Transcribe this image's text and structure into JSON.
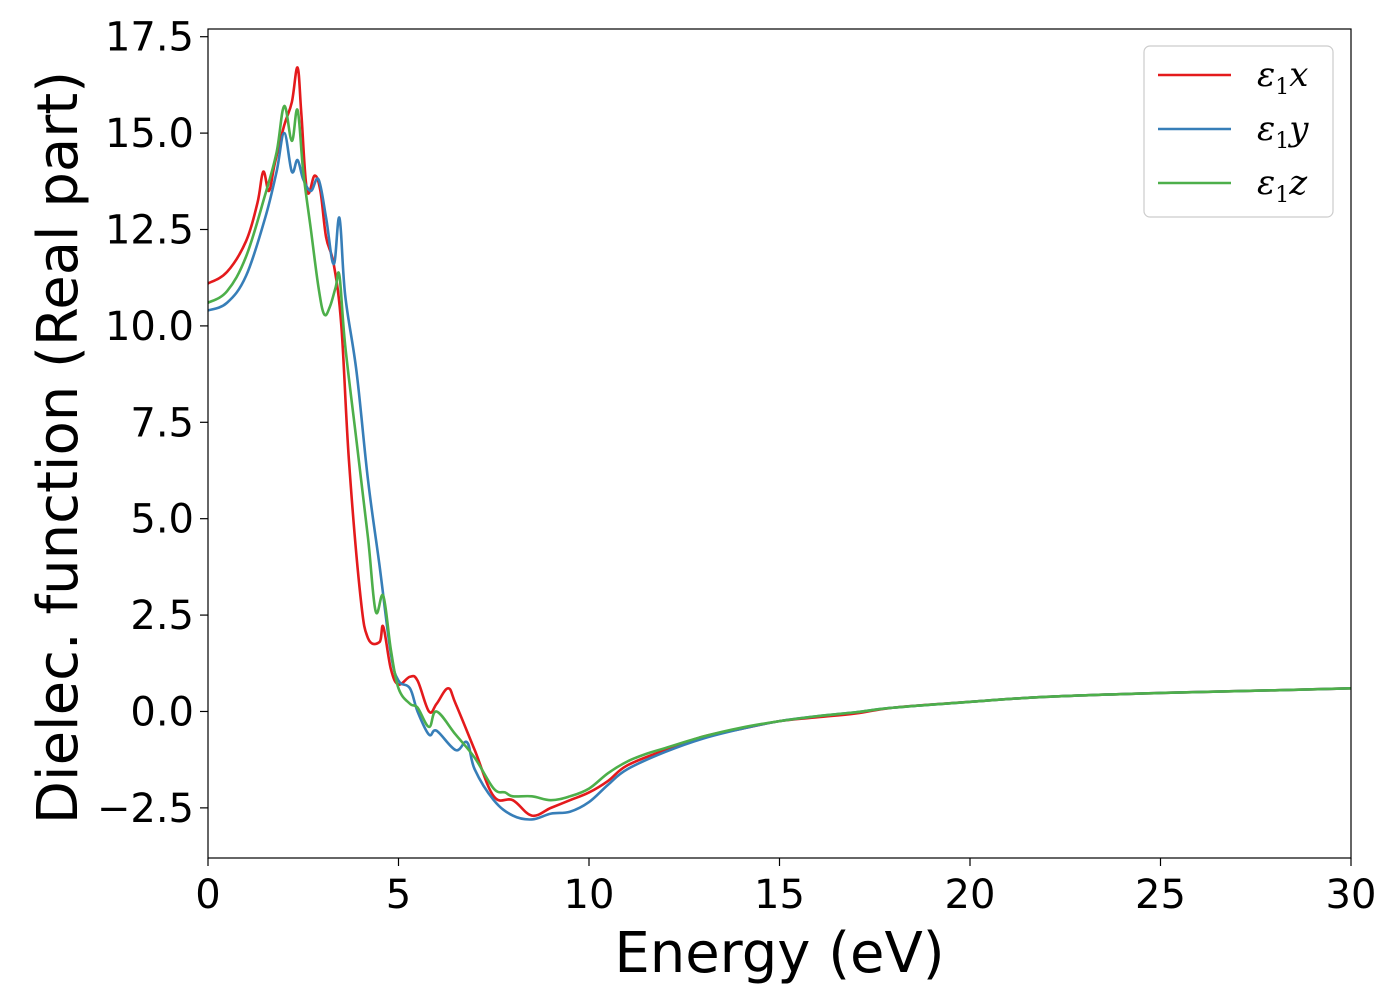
{
  "chart_data": {
    "type": "line",
    "title": "",
    "xlabel": "Energy (eV)",
    "ylabel": "Dielec. function (Real part)",
    "xlim": [
      0,
      30
    ],
    "ylim": [
      -3.8,
      17.7
    ],
    "xticks": [
      0,
      5,
      10,
      15,
      20,
      25,
      30
    ],
    "xtick_labels": [
      "0",
      "5",
      "10",
      "15",
      "20",
      "25",
      "30"
    ],
    "yticks": [
      -2.5,
      0.0,
      2.5,
      5.0,
      7.5,
      10.0,
      12.5,
      15.0,
      17.5
    ],
    "ytick_labels": [
      "−2.5",
      "0.0",
      "2.5",
      "5.0",
      "7.5",
      "10.0",
      "12.5",
      "15.0",
      "17.5"
    ],
    "grid": false,
    "legend_position": "top-right",
    "series": [
      {
        "name": "ε₁x",
        "legend_base": "ε",
        "legend_sub": "1",
        "legend_suffix": "x",
        "color": "#e41a1c",
        "x": [
          0,
          0.5,
          1.0,
          1.3,
          1.45,
          1.6,
          1.75,
          2.0,
          2.2,
          2.35,
          2.45,
          2.6,
          2.8,
          2.95,
          3.1,
          3.3,
          3.5,
          3.7,
          4.0,
          4.2,
          4.5,
          4.6,
          4.8,
          5.0,
          5.3,
          5.5,
          5.8,
          6.0,
          6.3,
          6.5,
          7.0,
          7.5,
          8.0,
          8.5,
          9.0,
          9.5,
          10.0,
          10.5,
          11.0,
          12.0,
          13.0,
          14.0,
          15.0,
          16.0,
          17.0,
          18.0,
          20.0,
          22.0,
          25.0,
          28.0,
          30.0
        ],
        "y": [
          11.1,
          11.4,
          12.2,
          13.2,
          14.0,
          13.5,
          14.2,
          15.2,
          15.8,
          16.7,
          15.5,
          13.5,
          13.9,
          13.5,
          12.3,
          11.6,
          10.0,
          6.5,
          3.0,
          1.9,
          1.8,
          2.2,
          1.1,
          0.7,
          0.9,
          0.8,
          0.0,
          0.2,
          0.6,
          0.2,
          -1.0,
          -2.2,
          -2.3,
          -2.7,
          -2.5,
          -2.3,
          -2.1,
          -1.8,
          -1.4,
          -1.0,
          -0.65,
          -0.45,
          -0.25,
          -0.15,
          -0.05,
          0.1,
          0.25,
          0.38,
          0.48,
          0.55,
          0.6
        ]
      },
      {
        "name": "ε₁y",
        "legend_base": "ε",
        "legend_sub": "1",
        "legend_suffix": "y",
        "color": "#377eb8",
        "x": [
          0,
          0.5,
          1.0,
          1.5,
          1.8,
          2.0,
          2.2,
          2.35,
          2.5,
          2.7,
          2.9,
          3.1,
          3.3,
          3.45,
          3.6,
          3.9,
          4.2,
          4.5,
          4.8,
          5.0,
          5.3,
          5.5,
          5.8,
          6.0,
          6.5,
          6.8,
          7.0,
          7.5,
          8.0,
          8.5,
          9.0,
          9.5,
          10.0,
          10.5,
          11.0,
          12.0,
          13.0,
          14.0,
          15.0,
          16.0,
          17.0,
          18.0,
          20.0,
          22.0,
          25.0,
          28.0,
          30.0
        ],
        "y": [
          10.4,
          10.6,
          11.3,
          12.8,
          14.0,
          15.0,
          14.0,
          14.3,
          13.8,
          13.5,
          13.8,
          12.8,
          11.6,
          12.8,
          10.8,
          8.8,
          6.0,
          3.8,
          1.5,
          0.8,
          0.6,
          0.0,
          -0.6,
          -0.5,
          -1.0,
          -0.8,
          -1.5,
          -2.3,
          -2.7,
          -2.8,
          -2.65,
          -2.6,
          -2.35,
          -1.9,
          -1.5,
          -1.05,
          -0.7,
          -0.45,
          -0.25,
          -0.12,
          -0.02,
          0.1,
          0.25,
          0.38,
          0.48,
          0.55,
          0.6
        ]
      },
      {
        "name": "ε₁z",
        "legend_base": "ε",
        "legend_sub": "1",
        "legend_suffix": "z",
        "color": "#4daf4a",
        "x": [
          0,
          0.5,
          1.0,
          1.5,
          1.8,
          2.0,
          2.2,
          2.35,
          2.5,
          2.7,
          2.9,
          3.05,
          3.2,
          3.35,
          3.45,
          3.6,
          3.9,
          4.2,
          4.4,
          4.6,
          4.8,
          5.0,
          5.3,
          5.5,
          5.8,
          6.0,
          6.5,
          7.0,
          7.5,
          7.8,
          8.0,
          8.5,
          9.0,
          9.5,
          10.0,
          10.5,
          11.0,
          11.5,
          12.0,
          13.0,
          14.0,
          15.0,
          16.0,
          17.0,
          18.0,
          20.0,
          22.0,
          25.0,
          28.0,
          30.0
        ],
        "y": [
          10.6,
          10.9,
          11.8,
          13.4,
          14.5,
          15.7,
          14.8,
          15.6,
          14.0,
          12.5,
          11.0,
          10.3,
          10.5,
          11.0,
          11.3,
          9.5,
          7.0,
          4.5,
          2.6,
          3.0,
          1.6,
          0.6,
          0.2,
          0.1,
          -0.4,
          0.0,
          -0.6,
          -1.2,
          -2.0,
          -2.1,
          -2.2,
          -2.2,
          -2.3,
          -2.2,
          -2.0,
          -1.6,
          -1.3,
          -1.1,
          -0.95,
          -0.65,
          -0.42,
          -0.25,
          -0.12,
          -0.02,
          0.1,
          0.25,
          0.38,
          0.48,
          0.55,
          0.6
        ]
      }
    ]
  }
}
